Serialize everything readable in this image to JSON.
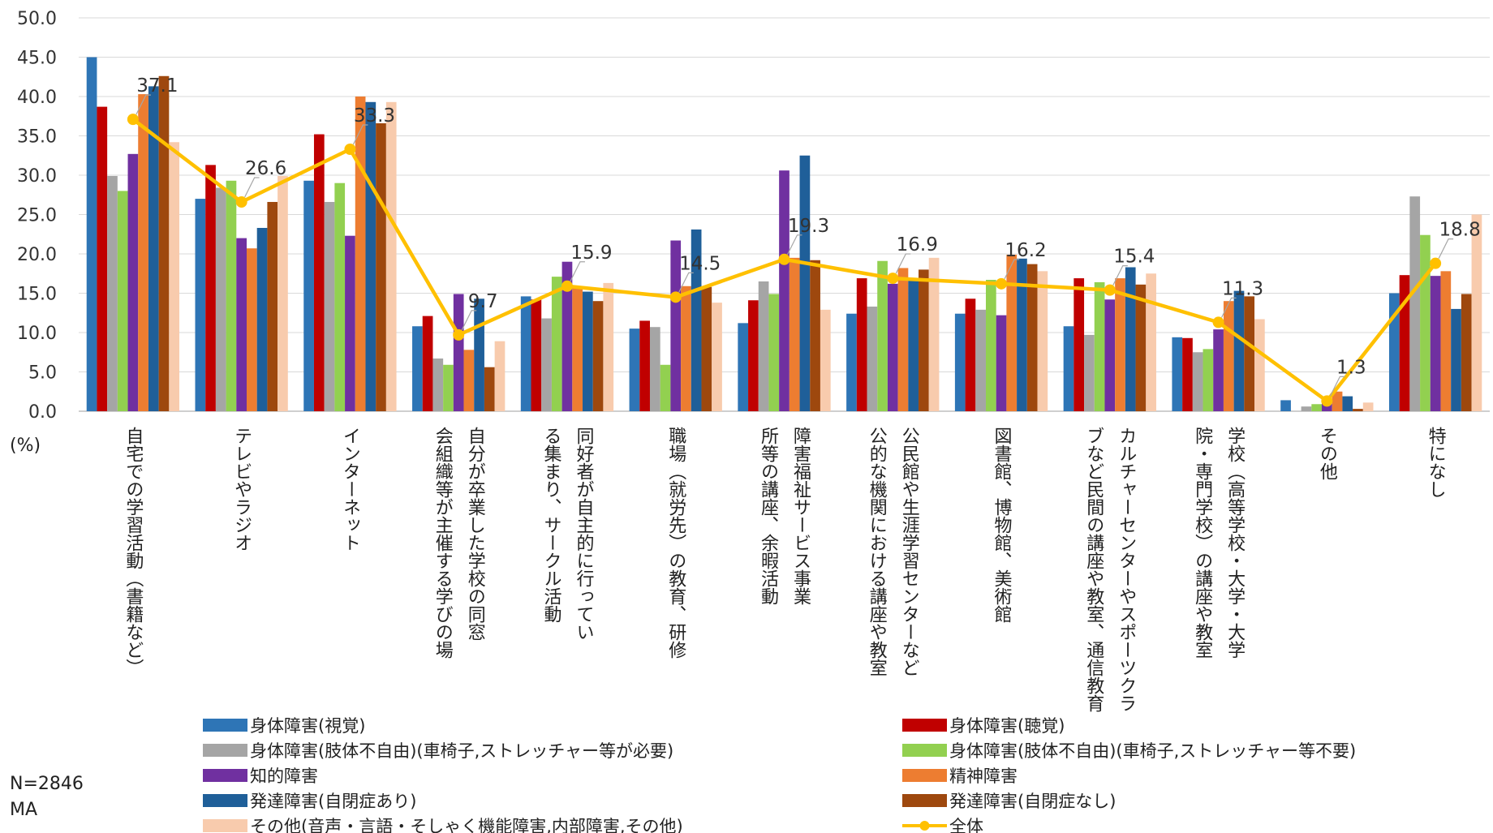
{
  "chart_data": {
    "type": "bar",
    "y_unit_label": "(%)",
    "ylim": [
      0,
      50
    ],
    "y_ticks": [
      "0.0",
      "5.0",
      "10.0",
      "15.0",
      "20.0",
      "25.0",
      "30.0",
      "35.0",
      "40.0",
      "45.0",
      "50.0"
    ],
    "grid": true,
    "legend_position": "bottom",
    "categories": [
      [
        "自宅での学習活動（書籍など）"
      ],
      [
        "テレビやラジオ"
      ],
      [
        "インターネット"
      ],
      [
        "自分が卒業した学校の同窓",
        "会組織等が主催する学びの場"
      ],
      [
        "同好者が自主的に行ってい",
        "る集まり、サークル活動"
      ],
      [
        "職場（就労先）の教育、研修"
      ],
      [
        "障害福祉サービス事業",
        "所等の講座、余暇活動"
      ],
      [
        "公民館や生涯学習センターなど",
        "公的な機関における講座や教室"
      ],
      [
        "図書館、博物館、美術館"
      ],
      [
        "カルチャーセンターやスポーツクラ",
        "ブなど民間の講座や教室、通信教育"
      ],
      [
        "学校（高等学校・大学・大学",
        "院・専門学校）の講座や教室"
      ],
      [
        "その他"
      ],
      [
        "特になし"
      ]
    ],
    "series": [
      {
        "name": "身体障害(視覚)",
        "color": "#2E75B6",
        "values": [
          45.0,
          27.0,
          29.3,
          10.8,
          14.6,
          10.5,
          11.2,
          12.4,
          12.4,
          10.8,
          9.4,
          1.4,
          15.0
        ]
      },
      {
        "name": "身体障害(聴覚)",
        "color": "#C00000",
        "values": [
          38.7,
          31.3,
          35.2,
          12.1,
          14.2,
          11.5,
          14.1,
          16.9,
          14.3,
          16.9,
          9.3,
          0.0,
          17.3
        ]
      },
      {
        "name": "身体障害(肢体不自由)(車椅子,ストレッチャー等が必要)",
        "color": "#A5A5A5",
        "values": [
          29.9,
          28.4,
          26.6,
          6.7,
          11.8,
          10.7,
          16.5,
          13.3,
          12.9,
          9.7,
          7.5,
          0.6,
          27.3
        ]
      },
      {
        "name": "身体障害(肢体不自由)(車椅子,ストレッチャー等不要)",
        "color": "#92D050",
        "values": [
          28.0,
          29.3,
          29.0,
          5.9,
          17.1,
          5.9,
          14.9,
          19.1,
          16.7,
          16.4,
          7.9,
          0.9,
          22.4
        ]
      },
      {
        "name": "知的障害",
        "color": "#7030A0",
        "values": [
          32.7,
          22.0,
          22.3,
          14.9,
          19.0,
          21.7,
          30.6,
          16.2,
          12.2,
          14.2,
          10.4,
          1.0,
          17.2
        ]
      },
      {
        "name": "精神障害",
        "color": "#ED7D31",
        "values": [
          40.3,
          20.7,
          40.0,
          7.8,
          15.8,
          15.9,
          19.5,
          18.2,
          19.9,
          16.9,
          14.0,
          2.5,
          17.8
        ]
      },
      {
        "name": "発達障害(自閉症あり)",
        "color": "#1F5F99",
        "values": [
          41.3,
          23.3,
          39.3,
          14.3,
          15.2,
          23.1,
          32.5,
          16.8,
          19.4,
          18.3,
          15.3,
          1.9,
          13.0
        ]
      },
      {
        "name": "発達障害(自閉症なし)",
        "color": "#9E480E",
        "values": [
          42.6,
          26.6,
          36.6,
          5.6,
          14.0,
          15.8,
          19.2,
          18.0,
          18.7,
          16.1,
          14.6,
          0.3,
          14.9
        ]
      },
      {
        "name": "その他(音声・言語・そしゃく機能障害,内部障害,その他)",
        "color": "#F8CBAD",
        "values": [
          34.2,
          29.9,
          39.3,
          8.9,
          16.3,
          13.8,
          12.9,
          19.5,
          17.8,
          17.5,
          11.7,
          1.1,
          25.0
        ]
      }
    ],
    "line_series": {
      "name": "全体",
      "color": "#FFC000",
      "values": [
        37.1,
        26.6,
        33.3,
        9.7,
        15.9,
        14.5,
        19.3,
        16.9,
        16.2,
        15.4,
        11.3,
        1.3,
        18.8
      ],
      "labels": [
        "37.1",
        "26.6",
        "33.3",
        "9.7",
        "15.9",
        "14.5",
        "19.3",
        "16.9",
        "16.2",
        "15.4",
        "11.3",
        "1.3",
        "18.8"
      ]
    }
  },
  "notes": {
    "n": "N=2846",
    "ma": "MA"
  }
}
